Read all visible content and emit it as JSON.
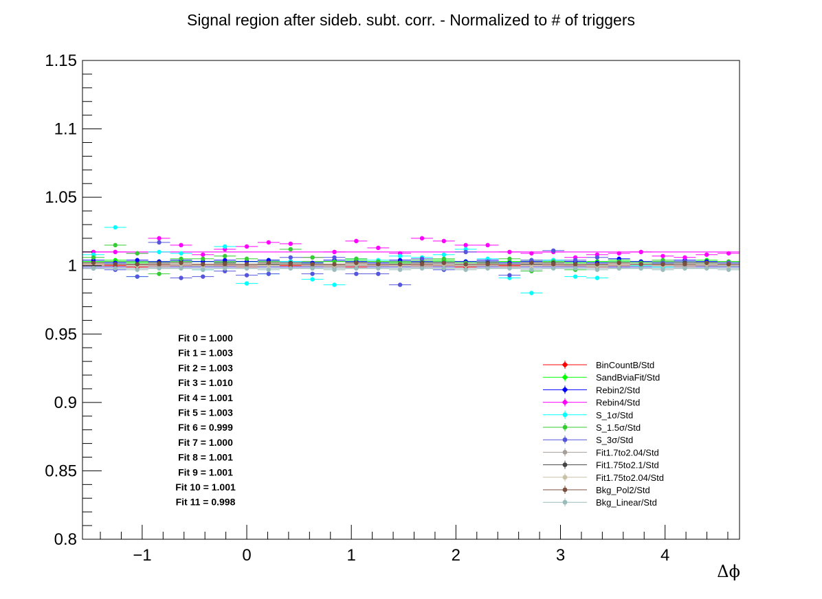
{
  "chart_data": {
    "type": "scatter",
    "title": "Signal region after sideb. subt. corr. - Normalized to # of triggers",
    "xlabel": "Δϕ",
    "ylabel": "",
    "xlim": [
      -1.571,
      4.712
    ],
    "ylim": [
      0.8,
      1.15
    ],
    "x_ticks": [
      -1,
      0,
      1,
      2,
      3,
      4
    ],
    "x_tick_labels": [
      "−1",
      "0",
      "1",
      "2",
      "3",
      "4"
    ],
    "y_ticks": [
      0.8,
      0.85,
      0.9,
      0.95,
      1.0,
      1.05,
      1.1,
      1.15
    ],
    "y_tick_labels": [
      "0.8",
      "0.85",
      "0.9",
      "0.95",
      "1",
      "1.05",
      "1.1",
      "1.15"
    ],
    "x": [
      -1.466,
      -1.257,
      -1.047,
      -0.838,
      -0.628,
      -0.419,
      -0.209,
      0.0,
      0.209,
      0.419,
      0.628,
      0.838,
      1.047,
      1.257,
      1.466,
      1.676,
      1.885,
      2.094,
      2.304,
      2.513,
      2.723,
      2.932,
      3.142,
      3.351,
      3.56,
      3.77,
      3.979,
      4.189,
      4.398,
      4.608
    ],
    "bin_half_width": 0.105,
    "series": [
      {
        "name": "BinCountB/Std",
        "color": "#ff0000",
        "marker": "diamond",
        "fit": 1.0,
        "values": [
          1.001,
          1.0,
          0.999,
          1.001,
          1.0,
          1.001,
          1.0,
          0.999,
          1.001,
          1.0,
          1.001,
          1.0,
          0.999,
          1.001,
          1.0,
          1.001,
          1.0,
          0.999,
          1.001,
          1.0,
          1.0,
          1.001,
          1.0,
          0.999,
          1.0,
          1.001,
          1.0,
          1.001,
          1.0,
          1.0
        ]
      },
      {
        "name": "SandBviaFit/Std",
        "color": "#00ff00",
        "marker": "diamond",
        "fit": 1.003,
        "values": [
          1.003,
          1.004,
          1.002,
          1.003,
          1.004,
          1.003,
          1.002,
          1.003,
          1.004,
          1.003,
          1.002,
          1.003,
          1.004,
          1.003,
          1.002,
          1.003,
          1.004,
          1.003,
          1.002,
          1.003,
          1.004,
          1.003,
          1.002,
          1.003,
          1.004,
          1.003,
          1.002,
          1.003,
          1.004,
          1.003
        ]
      },
      {
        "name": "Rebin2/Std",
        "color": "#0000ff",
        "marker": "diamond",
        "fit": 1.003,
        "values": [
          1.004,
          1.002,
          1.004,
          1.003,
          1.004,
          1.003,
          1.004,
          1.003,
          1.004,
          1.003,
          1.002,
          1.004,
          1.003,
          1.002,
          1.004,
          1.003,
          1.002,
          1.003,
          1.004,
          1.002,
          1.003,
          1.004,
          1.003,
          1.002,
          1.005,
          1.003,
          1.002,
          1.004,
          1.003,
          1.002
        ]
      },
      {
        "name": "Rebin4/Std",
        "color": "#ff00ff",
        "marker": "diamond",
        "fit": 1.01,
        "values": [
          1.01,
          1.01,
          1.009,
          1.02,
          1.015,
          1.008,
          1.012,
          1.014,
          1.017,
          1.016,
          1.006,
          1.01,
          1.018,
          1.013,
          1.009,
          1.02,
          1.018,
          1.015,
          1.015,
          1.01,
          1.009,
          1.01,
          1.006,
          1.008,
          1.009,
          1.01,
          1.007,
          1.006,
          1.008,
          1.009
        ]
      },
      {
        "name": "S_1σ/Std",
        "color": "#00ffff",
        "marker": "circle",
        "fit": 1.001,
        "values": [
          1.008,
          1.028,
          0.992,
          1.01,
          1.009,
          0.997,
          1.014,
          0.987,
          0.994,
          1.003,
          0.99,
          0.986,
          1.005,
          1.004,
          1.007,
          1.006,
          1.008,
          1.012,
          1.005,
          0.991,
          0.98,
          1.004,
          0.992,
          0.991,
          1.003,
          1.0,
          0.999,
          1.001,
          1.002,
          1.0
        ]
      },
      {
        "name": "S_1.5σ/Std",
        "color": "#33cc33",
        "marker": "circle",
        "fit": 1.003,
        "values": [
          1.006,
          1.015,
          1.009,
          0.994,
          1.005,
          1.005,
          1.007,
          1.005,
          1.001,
          1.012,
          1.006,
          1.003,
          1.005,
          1.003,
          1.002,
          1.004,
          1.005,
          1.002,
          1.003,
          1.005,
          0.996,
          1.003,
          0.997,
          1.0,
          1.003,
          1.002,
          1.004,
          1.003,
          1.002,
          1.003
        ]
      },
      {
        "name": "S_3σ/Std",
        "color": "#5555dd",
        "marker": "circle",
        "fit": 0.999,
        "values": [
          0.998,
          0.997,
          0.992,
          1.017,
          0.991,
          0.992,
          0.996,
          0.993,
          0.994,
          1.006,
          0.994,
          1.006,
          0.994,
          0.994,
          0.986,
          1.005,
          0.997,
          1.01,
          1.003,
          0.993,
          1.004,
          1.011,
          1.004,
          1.006,
          0.999,
          1.001,
          1.002,
          1.003,
          1.0,
          1.002
        ]
      },
      {
        "name": "Fit1.7to2.04/Std",
        "color": "#a89e98",
        "marker": "circle",
        "fit": 1.0,
        "values": [
          1.0,
          1.001,
          1.0,
          0.999,
          1.0,
          1.001,
          1.0,
          0.999,
          1.0,
          1.001,
          1.0,
          0.999,
          1.0,
          1.001,
          1.0,
          0.999,
          1.0,
          1.001,
          1.0,
          0.999,
          1.0,
          1.001,
          1.0,
          0.999,
          1.0,
          1.001,
          1.0,
          0.999,
          1.0,
          1.001
        ]
      },
      {
        "name": "Fit1.75to2.1/Std",
        "color": "#444444",
        "marker": "circle",
        "fit": 1.001,
        "values": [
          1.002,
          1.001,
          1.001,
          1.002,
          1.001,
          1.0,
          1.002,
          1.001,
          1.001,
          1.002,
          1.001,
          1.0,
          1.002,
          1.001,
          1.001,
          1.002,
          1.001,
          1.0,
          1.002,
          1.001,
          1.001,
          1.002,
          1.001,
          1.0,
          1.002,
          1.001,
          1.001,
          1.002,
          1.001,
          1.0
        ]
      },
      {
        "name": "Fit1.75to2.04/Std",
        "color": "#c9c0a8",
        "marker": "circle",
        "fit": 1.001,
        "values": [
          1.001,
          1.001,
          1.0,
          1.001,
          1.001,
          1.0,
          1.001,
          1.001,
          1.0,
          1.001,
          1.001,
          1.0,
          1.001,
          1.001,
          1.0,
          1.001,
          1.001,
          1.0,
          1.001,
          1.001,
          1.0,
          1.001,
          1.001,
          1.0,
          1.001,
          1.001,
          1.0,
          1.001,
          1.001,
          1.0
        ]
      },
      {
        "name": "Bkg_Pol2/Std",
        "color": "#7b5040",
        "marker": "circle",
        "fit": 1.001,
        "values": [
          1.002,
          1.001,
          1.001,
          1.001,
          1.002,
          1.001,
          1.001,
          1.001,
          1.002,
          1.001,
          1.001,
          1.001,
          1.002,
          1.001,
          1.001,
          1.001,
          1.002,
          1.001,
          1.001,
          1.001,
          1.002,
          1.001,
          1.001,
          1.001,
          1.002,
          1.001,
          1.001,
          1.001,
          1.002,
          1.001
        ]
      },
      {
        "name": "Bkg_Linear/Std",
        "color": "#99bbbb",
        "marker": "circle",
        "fit": 0.998,
        "values": [
          0.998,
          0.998,
          0.997,
          0.998,
          0.998,
          0.997,
          0.998,
          0.998,
          0.997,
          0.998,
          0.998,
          0.997,
          0.998,
          0.998,
          0.997,
          0.998,
          0.998,
          0.997,
          0.998,
          0.998,
          0.997,
          0.998,
          0.998,
          0.997,
          0.998,
          0.998,
          0.997,
          0.998,
          0.998,
          0.997
        ]
      }
    ],
    "fit_labels": [
      "Fit 0 = 1.000",
      "Fit 1 = 1.003",
      "Fit 2 = 1.003",
      "Fit 3 = 1.010",
      "Fit 4 = 1.001",
      "Fit 5 = 1.003",
      "Fit 6 = 0.999",
      "Fit 7 = 1.000",
      "Fit 8 = 1.001",
      "Fit 9 = 1.001",
      "Fit 10 = 1.001",
      "Fit 11 = 0.998"
    ],
    "legend_position": "bottom-right",
    "grid": false
  }
}
